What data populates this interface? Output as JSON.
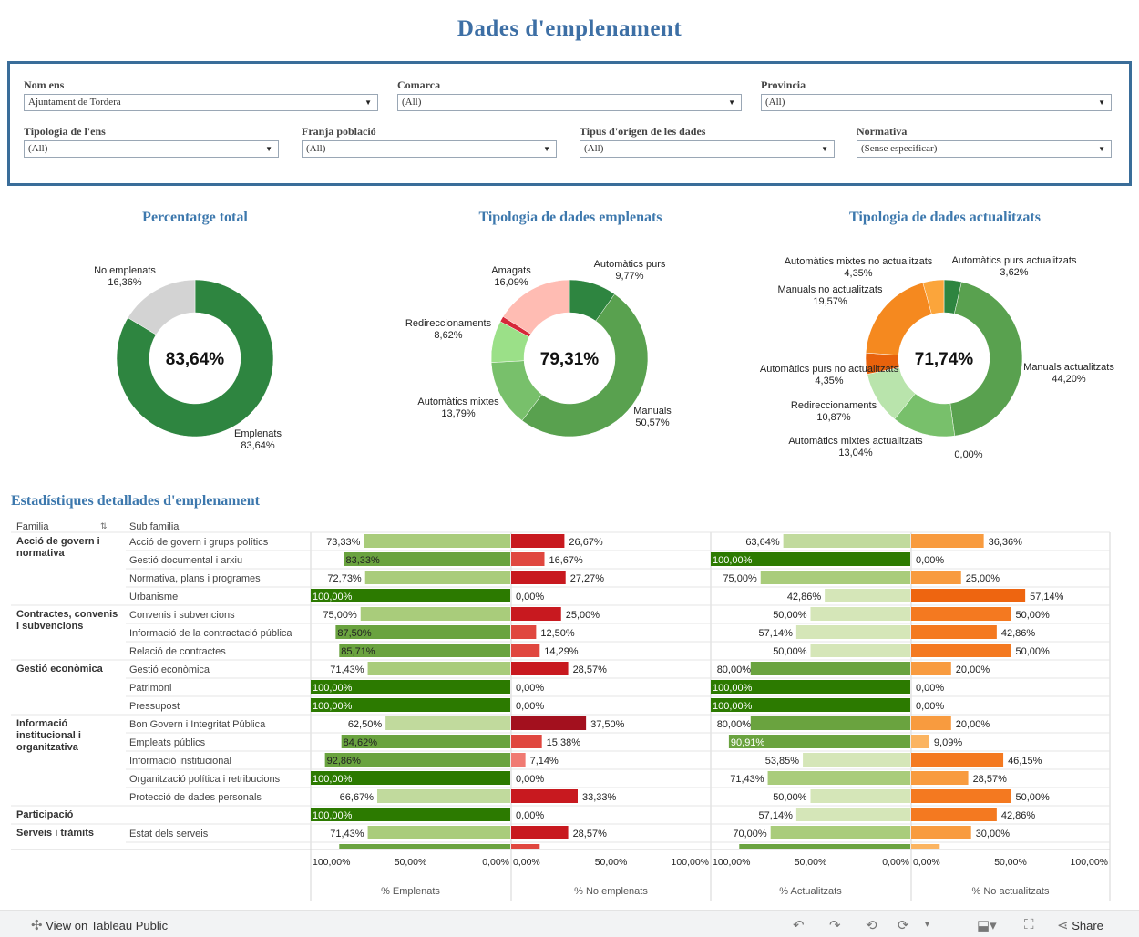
{
  "title": "Dades d'emplenament",
  "filters": [
    {
      "label": "Nom ens",
      "value": "Ajuntament de Tordera"
    },
    {
      "label": "Comarca",
      "value": "(All)"
    },
    {
      "label": "Provincia",
      "value": "(All)"
    },
    {
      "label": "Tipologia de l'ens",
      "value": "(All)"
    },
    {
      "label": "Franja població",
      "value": "(All)"
    },
    {
      "label": "Tipus d'origen de les dades",
      "value": "(All)"
    },
    {
      "label": "Normativa",
      "value": "(Sense especificar)"
    }
  ],
  "donuts": [
    {
      "title": "Percentatge total",
      "center": "83,64%",
      "slices": [
        {
          "name": "Emplenats",
          "pct": "83,64%",
          "value": 83.64,
          "color": "#2e8540"
        },
        {
          "name": "No emplenats",
          "pct": "16,36%",
          "value": 16.36,
          "color": "#d3d3d3"
        }
      ]
    },
    {
      "title": "Tipologia de dades emplenats",
      "center": "79,31%",
      "slices": [
        {
          "name": "Automàtics purs",
          "pct": "9,77%",
          "value": 9.77,
          "color": "#2e8540"
        },
        {
          "name": "Manuals",
          "pct": "50,57%",
          "value": 50.57,
          "color": "#59a14f"
        },
        {
          "name": "Automàtics mixtes",
          "pct": "13,79%",
          "value": 13.79,
          "color": "#78c06b"
        },
        {
          "name": "Redireccionaments",
          "pct": "8,62%",
          "value": 8.62,
          "color": "#9be088"
        },
        {
          "name": "",
          "pct": "",
          "value": 1.15,
          "color": "#d62839"
        },
        {
          "name": "Amagats",
          "pct": "16,09%",
          "value": 16.09,
          "color": "#ffbcb3"
        }
      ]
    },
    {
      "title": "Tipologia de dades actualitzats",
      "center": "71,74%",
      "slices": [
        {
          "name": "Automàtics purs actualitzats",
          "pct": "3,62%",
          "value": 3.62,
          "color": "#2e8540"
        },
        {
          "name": "Manuals actualitzats",
          "pct": "44,20%",
          "value": 44.2,
          "color": "#59a14f"
        },
        {
          "name": "Automàtics mixtes actualitzats",
          "pct": "13,04%",
          "value": 13.04,
          "color": "#78c06b"
        },
        {
          "name": "Redireccionaments",
          "pct": "10,87%",
          "value": 10.87,
          "color": "#b9e4ac"
        },
        {
          "name": "Automàtics purs no actualitzats",
          "pct": "4,35%",
          "value": 4.35,
          "color": "#e8620c"
        },
        {
          "name": "Manuals no actualitzats",
          "pct": "19,57%",
          "value": 19.57,
          "color": "#f5891f"
        },
        {
          "name": "Automàtics mixtes no actualitzats",
          "pct": "4,35%",
          "value": 4.35,
          "color": "#fba53b"
        }
      ],
      "extra_label": "0,00%"
    }
  ],
  "stats": {
    "title": "Estadístiques detallades d'emplenament",
    "col_familia": "Familia",
    "col_subfamilia": "Sub familia",
    "axis_ticks_left": [
      "100,00%",
      "50,00%",
      "0,00%"
    ],
    "axis_ticks_right": [
      "0,00%",
      "50,00%",
      "100,00%"
    ],
    "panel_titles": [
      "% Emplenats",
      "% No emplenats",
      "% Actualitzats",
      "% No actualitzats"
    ],
    "rows": [
      {
        "fam": "Acció de govern i normativa",
        "sub": "Acció de govern i grups polítics",
        "e": 73.33,
        "e_l": "73,33%",
        "n": 26.67,
        "n_l": "26,67%",
        "a": 63.64,
        "a_l": "63,64%",
        "na": 36.36,
        "na_l": "36,36%"
      },
      {
        "fam": "",
        "sub": "Gestió documental i arxiu",
        "e": 83.33,
        "e_l": "83,33%",
        "n": 16.67,
        "n_l": "16,67%",
        "a": 100,
        "a_l": "100,00%",
        "na": 0,
        "na_l": "0,00%"
      },
      {
        "fam": "",
        "sub": "Normativa, plans i programes",
        "e": 72.73,
        "e_l": "72,73%",
        "n": 27.27,
        "n_l": "27,27%",
        "a": 75,
        "a_l": "75,00%",
        "na": 25,
        "na_l": "25,00%"
      },
      {
        "fam": "",
        "sub": "Urbanisme",
        "e": 100,
        "e_l": "100,00%",
        "n": 0,
        "n_l": "0,00%",
        "a": 42.86,
        "a_l": "42,86%",
        "na": 57.14,
        "na_l": "57,14%"
      },
      {
        "fam": "Contractes, convenis i subvencions",
        "sub": "Convenis i subvencions",
        "e": 75,
        "e_l": "75,00%",
        "n": 25,
        "n_l": "25,00%",
        "a": 50,
        "a_l": "50,00%",
        "na": 50,
        "na_l": "50,00%"
      },
      {
        "fam": "",
        "sub": "Informació de la contractació pública",
        "e": 87.5,
        "e_l": "87,50%",
        "n": 12.5,
        "n_l": "12,50%",
        "a": 57.14,
        "a_l": "57,14%",
        "na": 42.86,
        "na_l": "42,86%"
      },
      {
        "fam": "",
        "sub": "Relació de contractes",
        "e": 85.71,
        "e_l": "85,71%",
        "n": 14.29,
        "n_l": "14,29%",
        "a": 50,
        "a_l": "50,00%",
        "na": 50,
        "na_l": "50,00%"
      },
      {
        "fam": "Gestió econòmica",
        "sub": "Gestió econòmica",
        "e": 71.43,
        "e_l": "71,43%",
        "n": 28.57,
        "n_l": "28,57%",
        "a": 80,
        "a_l": "80,00%",
        "na": 20,
        "na_l": "20,00%"
      },
      {
        "fam": "",
        "sub": "Patrimoni",
        "e": 100,
        "e_l": "100,00%",
        "n": 0,
        "n_l": "0,00%",
        "a": 100,
        "a_l": "100,00%",
        "na": 0,
        "na_l": "0,00%"
      },
      {
        "fam": "",
        "sub": "Pressupost",
        "e": 100,
        "e_l": "100,00%",
        "n": 0,
        "n_l": "0,00%",
        "a": 100,
        "a_l": "100,00%",
        "na": 0,
        "na_l": "0,00%"
      },
      {
        "fam": "Informació institucional i organitzativa",
        "sub": "Bon Govern i Integritat Pública",
        "e": 62.5,
        "e_l": "62,50%",
        "n": 37.5,
        "n_l": "37,50%",
        "a": 80,
        "a_l": "80,00%",
        "na": 20,
        "na_l": "20,00%"
      },
      {
        "fam": "",
        "sub": "Empleats públics",
        "e": 84.62,
        "e_l": "84,62%",
        "n": 15.38,
        "n_l": "15,38%",
        "a": 90.91,
        "a_l": "90,91%",
        "na": 9.09,
        "na_l": "9,09%"
      },
      {
        "fam": "",
        "sub": "Informació institucional",
        "e": 92.86,
        "e_l": "92,86%",
        "n": 7.14,
        "n_l": "7,14%",
        "a": 53.85,
        "a_l": "53,85%",
        "na": 46.15,
        "na_l": "46,15%"
      },
      {
        "fam": "",
        "sub": "Organització política i retribucions",
        "e": 100,
        "e_l": "100,00%",
        "n": 0,
        "n_l": "0,00%",
        "a": 71.43,
        "a_l": "71,43%",
        "na": 28.57,
        "na_l": "28,57%"
      },
      {
        "fam": "",
        "sub": "Protecció de dades personals",
        "e": 66.67,
        "e_l": "66,67%",
        "n": 33.33,
        "n_l": "33,33%",
        "a": 50,
        "a_l": "50,00%",
        "na": 50,
        "na_l": "50,00%"
      },
      {
        "fam": "Participació",
        "sub": "",
        "e": 100,
        "e_l": "100,00%",
        "n": 0,
        "n_l": "0,00%",
        "a": 57.14,
        "a_l": "57,14%",
        "na": 42.86,
        "na_l": "42,86%"
      },
      {
        "fam": "Serveis i tràmits",
        "sub": "Estat dels serveis",
        "e": 71.43,
        "e_l": "71,43%",
        "n": 28.57,
        "n_l": "28,57%",
        "a": 70,
        "a_l": "70,00%",
        "na": 30,
        "na_l": "30,00%"
      }
    ]
  },
  "footer": {
    "view_label": "View on Tableau Public",
    "share_label": "Share"
  }
}
